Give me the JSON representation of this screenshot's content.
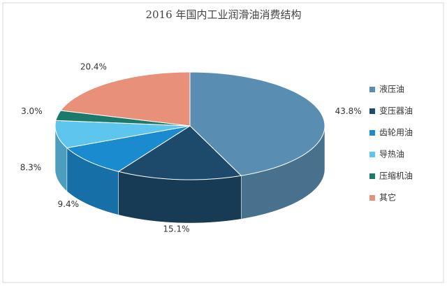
{
  "chart_data": {
    "type": "pie3d",
    "title": "2016 年国内工业润滑油消费结构",
    "categories": [
      "液压油",
      "变压器油",
      "齿轮用油",
      "导热油",
      "压缩机油",
      "其它"
    ],
    "values": [
      43.8,
      15.1,
      9.4,
      8.3,
      3.0,
      20.4
    ],
    "value_labels": [
      "43.8%",
      "15.1%",
      "9.4%",
      "8.3%",
      "3.0%",
      "20.4%"
    ],
    "colors": [
      "#5a8db2",
      "#1d4a6a",
      "#1b8bcf",
      "#5ec6ee",
      "#1b7a6c",
      "#e8907a"
    ]
  }
}
